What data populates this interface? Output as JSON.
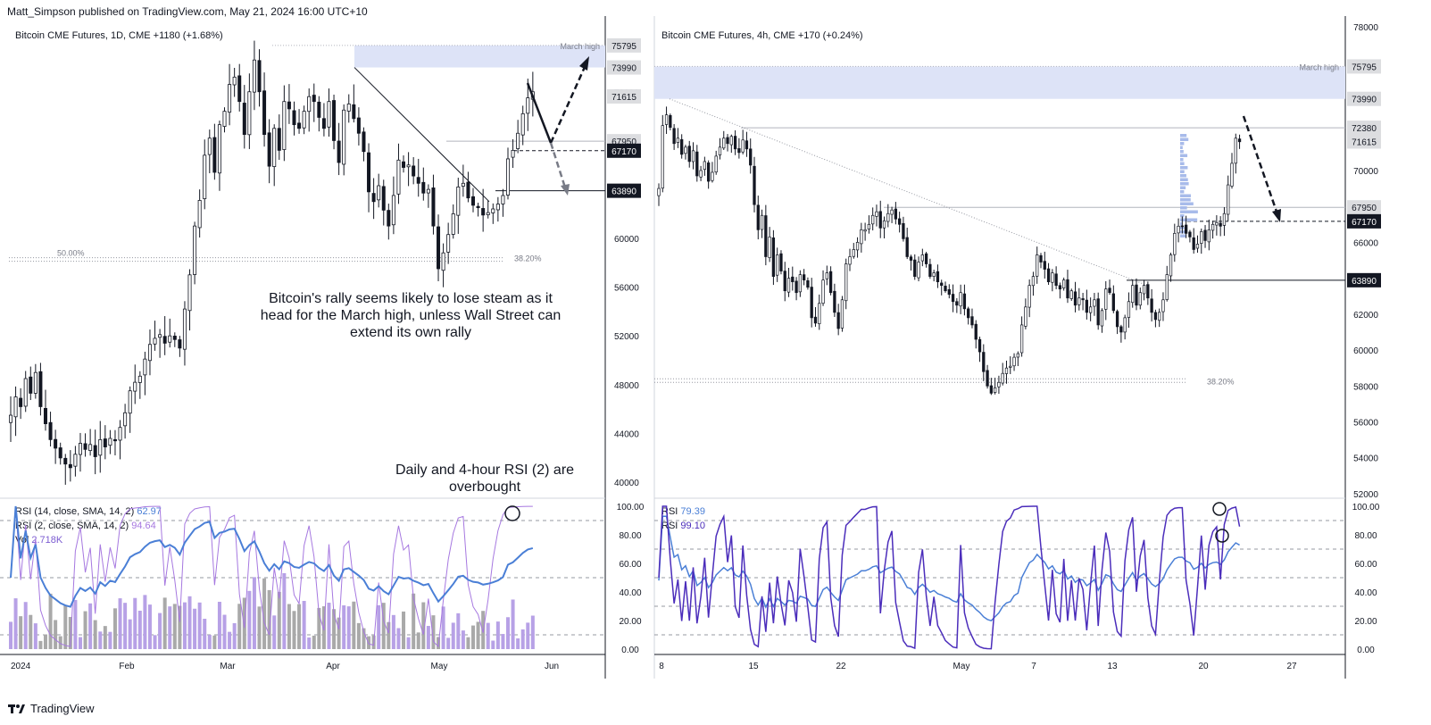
{
  "header": {
    "publisher": "Matt_Simpson published on TradingView.com, May 21, 2024 16:00 UTC+10"
  },
  "footer": {
    "brand": "TradingView"
  },
  "colors": {
    "price": "#131722",
    "zone": "#dde3f7",
    "rsi14": "#4a7fd6",
    "rsi2": "#a678e0",
    "rsi4h": "#4b2dbb",
    "vol_up": "#a9a9a9",
    "vol_down": "#b7a1e6"
  },
  "left": {
    "title": "Bitcoin CME Futures, 1D, CME  +1180 (+1.68%)",
    "price_labels": [
      {
        "value": "75795",
        "dark": false
      },
      {
        "value": "73990",
        "dark": false
      },
      {
        "value": "71615",
        "dark": false
      },
      {
        "value": "67950",
        "dark": false
      },
      {
        "value": "67170",
        "dark": true
      },
      {
        "value": "63890",
        "dark": true
      }
    ],
    "zone_label": "March high",
    "fib_a": "50.00%",
    "fib_b": "38.20%",
    "note_main": "Bitcoin's rally seems likely to lose steam as it head for the March high, unless Wall Street can extend its own rally",
    "note_rsi": "Daily and 4-hour RSI (2) are overbought",
    "rsi14_label": "RSI (14, close, SMA, 14, 2)",
    "rsi14_value": "62.97",
    "rsi2_label": "RSI (2, close, SMA, 14, 2)",
    "rsi2_value": "94.64",
    "vol_label": "Vol",
    "vol_value": "2.718K"
  },
  "right": {
    "title": "Bitcoin CME Futures, 4h, CME  +170 (+0.24%)",
    "price_labels": [
      {
        "value": "75795",
        "dark": false
      },
      {
        "value": "73990",
        "dark": false
      },
      {
        "value": "72380",
        "dark": false
      },
      {
        "value": "71615",
        "dark": false
      },
      {
        "value": "67950",
        "dark": false
      },
      {
        "value": "67170",
        "dark": true
      },
      {
        "value": "63890",
        "dark": true
      }
    ],
    "zone_label": "March high",
    "fib_b": "38.20%",
    "rsi_label": "RSI",
    "rsi_value_a": "79.39",
    "rsi_value_b": "99.10"
  },
  "chart_data": [
    {
      "type": "candlestick",
      "title": "Bitcoin CME Futures, 1D, CME",
      "y_ticks": [
        40000,
        44000,
        48000,
        52000,
        56000,
        60000,
        64000,
        68000,
        72000
      ],
      "ylim": [
        38700,
        78200
      ],
      "x_ticks": [
        "2024",
        "Feb",
        "Mar",
        "Apr",
        "May",
        "Jun"
      ],
      "levels": [
        75795,
        73990,
        67950,
        67170,
        63890
      ],
      "closes": [
        45500,
        47000,
        46200,
        48500,
        47300,
        49000,
        46200,
        44800,
        43500,
        42800,
        42000,
        41500,
        41200,
        42300,
        43200,
        42700,
        43100,
        42100,
        43500,
        42900,
        43600,
        43400,
        44500,
        45700,
        47500,
        48200,
        48700,
        50100,
        51300,
        51800,
        52100,
        51400,
        52000,
        51700,
        51000,
        54200,
        57000,
        61000,
        63100,
        66800,
        68200,
        65400,
        69300,
        70400,
        72600,
        73200,
        71200,
        68500,
        72000,
        74600,
        72000,
        68500,
        65900,
        69000,
        67200,
        71200,
        70600,
        69300,
        69000,
        70400,
        71600,
        71200,
        69900,
        69000,
        71200,
        68000,
        66200,
        70500,
        71000,
        69800,
        68600,
        67100,
        63800,
        63000,
        64300,
        62300,
        61000,
        63500,
        66400,
        65800,
        66000,
        65100,
        64500,
        63700,
        64000,
        61000,
        57500,
        58800,
        60300,
        62000,
        64200,
        64500,
        63300,
        62700,
        62500,
        61900,
        62100,
        62400,
        62800,
        63500,
        66500,
        67200,
        68600,
        70200,
        71500,
        72000
      ]
    },
    {
      "type": "candlestick",
      "title": "Bitcoin CME Futures, 4h, CME",
      "y_ticks": [
        52000,
        54000,
        56000,
        58000,
        60000,
        62000,
        64000,
        66000,
        68000,
        70000,
        72000,
        74000,
        76000,
        78000
      ],
      "ylim": [
        51750,
        78600
      ],
      "x_ticks": [
        "8",
        "15",
        "22",
        "May",
        "7",
        "13",
        "20",
        "27"
      ],
      "levels": [
        75795,
        73990,
        72380,
        67950,
        67170,
        63890
      ],
      "closes": [
        69000,
        72500,
        73100,
        72400,
        71500,
        71800,
        70900,
        71300,
        70500,
        71100,
        69700,
        70000,
        70500,
        69400,
        69900,
        70800,
        71300,
        71800,
        71500,
        71900,
        71200,
        71000,
        71700,
        71200,
        70300,
        68100,
        66700,
        67500,
        65200,
        66300,
        64100,
        65300,
        64400,
        63300,
        64000,
        63800,
        63200,
        64200,
        63900,
        63500,
        61800,
        61500,
        62600,
        63900,
        64300,
        63200,
        62100,
        61200,
        62800,
        64800,
        65200,
        65600,
        66000,
        66700,
        66700,
        67000,
        67500,
        67700,
        66800,
        67200,
        67600,
        67800,
        67300,
        67000,
        66200,
        65200,
        65000,
        64100,
        64900,
        65300,
        64800,
        64100,
        64300,
        63800,
        63600,
        63300,
        63100,
        62700,
        62500,
        63200,
        62300,
        61800,
        61400,
        60600,
        59900,
        58800,
        58000,
        57600,
        57900,
        58200,
        58700,
        59000,
        59100,
        59600,
        59800,
        61400,
        62400,
        63600,
        64100,
        65300,
        64900,
        64500,
        63800,
        64300,
        63600,
        63400,
        63900,
        62900,
        63300,
        62500,
        62900,
        62800,
        62100,
        62400,
        62800,
        61400,
        62200,
        63400,
        63200,
        62200,
        61300,
        61000,
        61800,
        62700,
        63600,
        62500,
        63200,
        63600,
        62900,
        62100,
        61700,
        62100,
        62800,
        64200,
        65300,
        66500,
        66900,
        66900,
        66500,
        66300,
        65600,
        65900,
        66600,
        66100,
        66700,
        67000,
        67100,
        66900,
        67600,
        69200,
        70400,
        71800,
        71600
      ]
    }
  ]
}
